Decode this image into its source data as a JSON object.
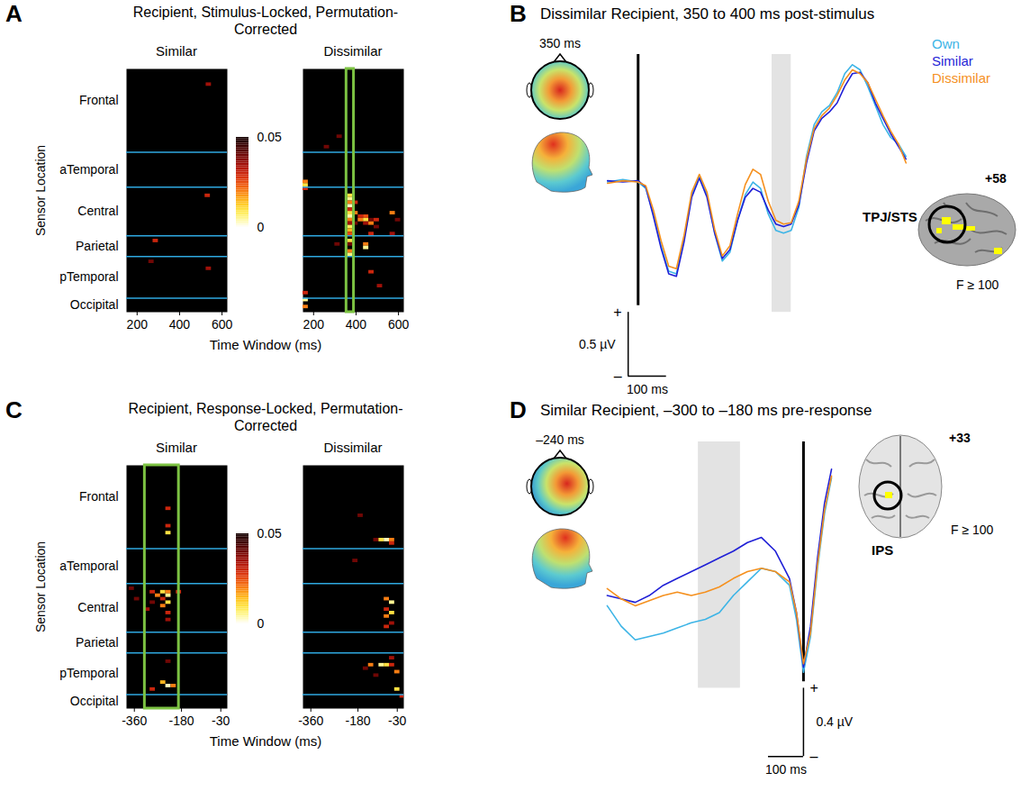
{
  "chart_data": [
    {
      "panel_label": "A",
      "type": "heatmap",
      "title": "Recipient, Stimulus-Locked, Permutation-Corrected",
      "ylabel": "Sensor Location",
      "xlabel": "Time Window (ms)",
      "xlim": [
        150,
        625
      ],
      "xticks": [
        200,
        400,
        600
      ],
      "ylim": [
        0,
        70
      ],
      "yticks": [
        {
          "value": 9,
          "label": "Frontal"
        },
        {
          "value": 29,
          "label": "aTemporal"
        },
        {
          "value": 41,
          "label": "Central"
        },
        {
          "value": 51,
          "label": "Parietal"
        },
        {
          "value": 60,
          "label": "pTemporal"
        },
        {
          "value": 68,
          "label": "Occipital"
        }
      ],
      "group_boundaries": [
        24,
        34,
        48,
        54,
        66
      ],
      "colorbar": {
        "range": [
          0,
          0.05
        ],
        "ticks": [
          0,
          0.05
        ]
      },
      "panels": [
        {
          "subtitle": "Similar",
          "cells": [
            [
              525,
              550,
              4,
              0.035
            ],
            [
              520,
              545,
              36,
              0.03
            ],
            [
              275,
              300,
              49,
              0.03
            ],
            [
              255,
              280,
              55,
              0.04
            ],
            [
              525,
              550,
              57,
              0.035
            ]
          ]
        },
        {
          "subtitle": "Dissimilar",
          "highlight": [
            355,
            390
          ],
          "cells": [
            [
              150,
              175,
              32,
              0.02
            ],
            [
              150,
              175,
              33,
              0.01
            ],
            [
              150,
              175,
              34,
              0.03
            ],
            [
              150,
              175,
              64,
              0.03
            ],
            [
              150,
              175,
              66,
              0.005
            ],
            [
              150,
              175,
              68,
              0.02
            ],
            [
              250,
              275,
              22,
              0.04
            ],
            [
              310,
              335,
              19,
              0.04
            ],
            [
              300,
              325,
              50,
              0.04
            ],
            [
              360,
              385,
              36,
              0.01
            ],
            [
              360,
              385,
              37,
              0.005
            ],
            [
              360,
              385,
              38,
              0.02
            ],
            [
              360,
              385,
              39,
              0.003
            ],
            [
              360,
              385,
              40,
              0.03
            ],
            [
              360,
              385,
              41,
              0.01
            ],
            [
              360,
              385,
              42,
              0.004
            ],
            [
              360,
              385,
              43,
              0.02
            ],
            [
              360,
              385,
              44,
              0.035
            ],
            [
              360,
              385,
              45,
              0.008
            ],
            [
              360,
              385,
              46,
              0.015
            ],
            [
              360,
              385,
              47,
              0.025
            ],
            [
              360,
              385,
              49,
              0.01
            ],
            [
              360,
              385,
              50,
              0.04
            ],
            [
              360,
              385,
              52,
              0.02
            ],
            [
              360,
              385,
              53,
              0.006
            ],
            [
              385,
              410,
              38,
              0.03
            ],
            [
              385,
              410,
              41,
              0.02
            ],
            [
              385,
              410,
              44,
              0.04
            ],
            [
              410,
              435,
              42,
              0.03
            ],
            [
              410,
              435,
              43,
              0.02
            ],
            [
              435,
              460,
              42,
              0.025
            ],
            [
              435,
              460,
              43,
              0.01
            ],
            [
              435,
              460,
              44,
              0.035
            ],
            [
              435,
              460,
              50,
              0.02
            ],
            [
              435,
              460,
              51,
              0.005
            ],
            [
              460,
              485,
              43,
              0.04
            ],
            [
              460,
              485,
              44,
              0.02
            ],
            [
              460,
              485,
              47,
              0.03
            ],
            [
              485,
              510,
              43,
              0.03
            ],
            [
              485,
              510,
              45,
              0.04
            ],
            [
              560,
              585,
              41,
              0.02
            ],
            [
              560,
              585,
              47,
              0.035
            ],
            [
              585,
              610,
              43,
              0.04
            ],
            [
              460,
              485,
              58,
              0.03
            ],
            [
              500,
              525,
              62,
              0.035
            ]
          ]
        }
      ]
    },
    {
      "panel_label": "B",
      "type": "line",
      "title": "Dissimilar Recipient, 350 to 400 ms post-stimulus",
      "topomap_label": "350 ms",
      "highlight": [
        350,
        400
      ],
      "event_time": 0,
      "xlim": [
        -90,
        710
      ],
      "ylim": [
        -1.6,
        1.0
      ],
      "tick_labels": false,
      "legend": "top-right",
      "scale_bars": {
        "x": {
          "value": 100,
          "label": "100 ms"
        },
        "y": {
          "value": 0.5,
          "label": "0.5 µV"
        },
        "plus": "+",
        "minus": "–"
      },
      "brain": {
        "slice": "+58",
        "region": "TPJ/STS",
        "threshold": "F ≥ 100"
      },
      "x": [
        -80,
        -40,
        0,
        20,
        40,
        60,
        80,
        100,
        120,
        140,
        160,
        180,
        200,
        220,
        240,
        260,
        280,
        300,
        320,
        340,
        360,
        380,
        400,
        420,
        440,
        460,
        480,
        500,
        520,
        540,
        560,
        580,
        600,
        620,
        640,
        660,
        680,
        700
      ],
      "series": [
        {
          "name": "Own",
          "color": "#3cb4e6",
          "values": [
            0,
            0.02,
            0,
            -0.05,
            -0.25,
            -0.5,
            -0.7,
            -0.72,
            -0.45,
            -0.1,
            0.05,
            -0.1,
            -0.4,
            -0.62,
            -0.55,
            -0.3,
            -0.1,
            0,
            -0.05,
            -0.25,
            -0.38,
            -0.4,
            -0.38,
            -0.2,
            0.2,
            0.45,
            0.55,
            0.6,
            0.7,
            0.85,
            0.92,
            0.88,
            0.75,
            0.6,
            0.45,
            0.35,
            0.3,
            0.2
          ]
        },
        {
          "name": "Similar",
          "color": "#1f1fd6",
          "values": [
            0.01,
            0,
            0.01,
            -0.04,
            -0.27,
            -0.52,
            -0.72,
            -0.74,
            -0.47,
            -0.12,
            0.03,
            -0.12,
            -0.4,
            -0.6,
            -0.53,
            -0.3,
            -0.12,
            -0.05,
            -0.08,
            -0.22,
            -0.33,
            -0.35,
            -0.33,
            -0.18,
            0.15,
            0.4,
            0.5,
            0.55,
            0.62,
            0.75,
            0.85,
            0.86,
            0.78,
            0.62,
            0.5,
            0.38,
            0.28,
            0.18
          ]
        },
        {
          "name": "Dissimilar",
          "color": "#f5901e",
          "values": [
            -0.01,
            0.01,
            0,
            -0.03,
            -0.22,
            -0.46,
            -0.66,
            -0.68,
            -0.42,
            -0.08,
            0.06,
            -0.08,
            -0.37,
            -0.58,
            -0.5,
            -0.25,
            -0.02,
            0.1,
            0.06,
            -0.15,
            -0.3,
            -0.33,
            -0.32,
            -0.15,
            0.18,
            0.42,
            0.52,
            0.58,
            0.68,
            0.8,
            0.88,
            0.85,
            0.78,
            0.65,
            0.52,
            0.4,
            0.3,
            0.15
          ]
        }
      ]
    },
    {
      "panel_label": "C",
      "type": "heatmap",
      "title": "Recipient, Response-Locked, Permutation-Corrected",
      "ylabel": "Sensor Location",
      "xlabel": "Time Window (ms)",
      "xlim": [
        -390,
        -5
      ],
      "xticks": [
        -360,
        -180,
        -30
      ],
      "ylim": [
        0,
        70
      ],
      "yticks": [
        {
          "value": 9,
          "label": "Frontal"
        },
        {
          "value": 29,
          "label": "aTemporal"
        },
        {
          "value": 41,
          "label": "Central"
        },
        {
          "value": 51,
          "label": "Parietal"
        },
        {
          "value": 60,
          "label": "pTemporal"
        },
        {
          "value": 68,
          "label": "Occipital"
        }
      ],
      "group_boundaries": [
        24,
        34,
        48,
        54,
        66
      ],
      "colorbar": {
        "range": [
          0,
          0.05
        ],
        "ticks": [
          0,
          0.05
        ]
      },
      "panels": [
        {
          "subtitle": "Similar",
          "highlight": [
            -320,
            -190
          ],
          "cells": [
            [
              -240,
              -220,
              12,
              0.03
            ],
            [
              -240,
              -220,
              17,
              0.03
            ],
            [
              -240,
              -220,
              19,
              0.01
            ],
            [
              -380,
              -360,
              35,
              0.04
            ],
            [
              -360,
              -340,
              38,
              0.04
            ],
            [
              -300,
              -280,
              36,
              0.03
            ],
            [
              -260,
              -240,
              36,
              0.01
            ],
            [
              -240,
              -220,
              36,
              0.02
            ],
            [
              -200,
              -180,
              36,
              0.03
            ],
            [
              -280,
              -260,
              37,
              0.02
            ],
            [
              -240,
              -220,
              37,
              0.005
            ],
            [
              -260,
              -240,
              38,
              0.03
            ],
            [
              -300,
              -280,
              39,
              0.04
            ],
            [
              -240,
              -220,
              39,
              0.01
            ],
            [
              -260,
              -240,
              40,
              0.02
            ],
            [
              -320,
              -300,
              41,
              0.035
            ],
            [
              -240,
              -220,
              42,
              0.03
            ],
            [
              -240,
              -220,
              44,
              0.035
            ],
            [
              -240,
              -220,
              56,
              0.04
            ],
            [
              -260,
              -240,
              62,
              0.015
            ],
            [
              -240,
              -220,
              63,
              0.003
            ],
            [
              -220,
              -200,
              63,
              0.02
            ],
            [
              -300,
              -280,
              64,
              0.03
            ]
          ]
        },
        {
          "subtitle": "Dissimilar",
          "cells": [
            [
              -180,
              -160,
              14,
              0.04
            ],
            [
              -120,
              -100,
              21,
              0.04
            ],
            [
              -100,
              -80,
              21,
              0.01
            ],
            [
              -80,
              -60,
              21,
              0.003
            ],
            [
              -60,
              -40,
              21,
              0.02
            ],
            [
              -60,
              -40,
              22,
              0.03
            ],
            [
              -200,
              -180,
              27,
              0.04
            ],
            [
              -80,
              -60,
              38,
              0.02
            ],
            [
              -60,
              -40,
              39,
              0.005
            ],
            [
              -80,
              -60,
              41,
              0.03
            ],
            [
              -60,
              -40,
              42,
              0.01
            ],
            [
              -80,
              -60,
              43,
              0.02
            ],
            [
              -60,
              -40,
              45,
              0.035
            ],
            [
              -80,
              -60,
              46,
              0.03
            ],
            [
              -60,
              -40,
              55,
              0.035
            ],
            [
              -140,
              -120,
              57,
              0.02
            ],
            [
              -100,
              -80,
              57,
              0.005
            ],
            [
              -80,
              -60,
              57,
              0.01
            ],
            [
              -60,
              -40,
              57,
              0.03
            ],
            [
              -160,
              -140,
              58,
              0.04
            ],
            [
              -40,
              -20,
              59,
              0.02
            ],
            [
              -120,
              -100,
              60,
              0.04
            ],
            [
              -40,
              -20,
              64,
              0.01
            ],
            [
              -20,
              -5,
              66,
              0.03
            ]
          ]
        }
      ]
    },
    {
      "panel_label": "D",
      "type": "line",
      "title": "Similar Recipient, –300 to –180 ms pre-response",
      "topomap_label": "–240 ms",
      "highlight": [
        -300,
        -180
      ],
      "event_time": 0,
      "xlim": [
        -570,
        85
      ],
      "ylim": [
        -1.0,
        0.9
      ],
      "tick_labels": false,
      "scale_bars": {
        "x": {
          "value": 100,
          "label": "100 ms"
        },
        "y": {
          "value": 0.4,
          "label": "0.4 µV"
        },
        "plus": "+",
        "minus": "–"
      },
      "brain": {
        "slice": "+33",
        "region": "IPS",
        "threshold": "F ≥ 100"
      },
      "x": [
        -560,
        -520,
        -480,
        -440,
        -400,
        -360,
        -320,
        -280,
        -240,
        -200,
        -160,
        -120,
        -80,
        -40,
        -20,
        0,
        20,
        40,
        60,
        80
      ],
      "series": [
        {
          "name": "Own",
          "color": "#3cb4e6",
          "values": [
            -0.06,
            -0.18,
            -0.26,
            -0.24,
            -0.22,
            -0.19,
            -0.16,
            -0.14,
            -0.1,
            0,
            0.08,
            0.16,
            0.14,
            0.06,
            -0.14,
            -0.45,
            -0.24,
            0.16,
            0.48,
            0.69
          ]
        },
        {
          "name": "Similar",
          "color": "#1f1fd6",
          "values": [
            0,
            -0.02,
            -0.04,
            0,
            0.06,
            0.1,
            0.14,
            0.18,
            0.22,
            0.26,
            0.31,
            0.34,
            0.26,
            0.1,
            -0.1,
            -0.42,
            -0.18,
            0.22,
            0.54,
            0.74
          ]
        },
        {
          "name": "Dissimilar",
          "color": "#f5901e",
          "values": [
            0.04,
            -0.02,
            -0.06,
            -0.03,
            0,
            0.02,
            0,
            0.02,
            0.05,
            0.1,
            0.14,
            0.16,
            0.14,
            0.08,
            -0.1,
            -0.4,
            -0.22,
            0.18,
            0.5,
            0.7
          ]
        }
      ]
    }
  ]
}
